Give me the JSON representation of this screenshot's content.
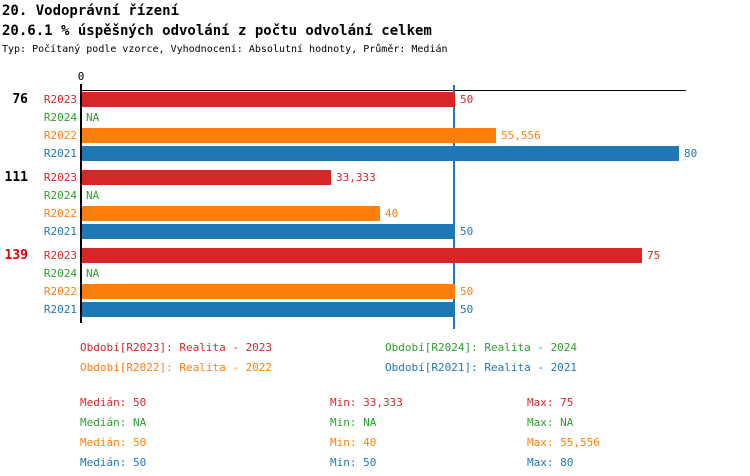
{
  "page": {
    "title": "20. Vodoprávní řízení",
    "subtitle": "20.6.1 % úspěšných odvolání z počtu odvolání celkem",
    "meta": "Typ: Počítaný podle vzorce, Vyhodnocení: Absolutní hodnoty, Průměr: Medián"
  },
  "colors": {
    "R2023": "#d62728",
    "R2024": "#2ca02c",
    "R2022": "#ff7f0e",
    "R2021": "#1f77b4",
    "axis": "#000000",
    "median_line": "#1f77b4",
    "group_label": "#000000",
    "highlighted_group_label": "#e00000"
  },
  "chart_data": {
    "type": "bar",
    "orientation": "horizontal",
    "title": "20.6.1 % úspěšných odvolání z počtu odvolání celkem",
    "axis_origin_label": "0",
    "value_axis_min": 0,
    "value_axis_max": 81,
    "median_reference_line": 50,
    "grid": false,
    "series_order": [
      "R2023",
      "R2024",
      "R2022",
      "R2021"
    ],
    "groups": [
      {
        "label": "76",
        "highlighted": false,
        "bars": [
          {
            "series": "R2023",
            "value": 50,
            "display": "50"
          },
          {
            "series": "R2024",
            "value": null,
            "display": "NA"
          },
          {
            "series": "R2022",
            "value": 55.556,
            "display": "55,556"
          },
          {
            "series": "R2021",
            "value": 80,
            "display": "80"
          }
        ]
      },
      {
        "label": "111",
        "highlighted": false,
        "bars": [
          {
            "series": "R2023",
            "value": 33.333,
            "display": "33,333"
          },
          {
            "series": "R2024",
            "value": null,
            "display": "NA"
          },
          {
            "series": "R2022",
            "value": 40,
            "display": "40"
          },
          {
            "series": "R2021",
            "value": 50,
            "display": "50"
          }
        ]
      },
      {
        "label": "139",
        "highlighted": true,
        "bars": [
          {
            "series": "R2023",
            "value": 75,
            "display": "75"
          },
          {
            "series": "R2024",
            "value": null,
            "display": "NA"
          },
          {
            "series": "R2022",
            "value": 50,
            "display": "50"
          },
          {
            "series": "R2021",
            "value": 50,
            "display": "50"
          }
        ]
      }
    ]
  },
  "legend": {
    "items": [
      {
        "series": "R2023",
        "label": "Období[R2023]: Realita - 2023"
      },
      {
        "series": "R2024",
        "label": "Období[R2024]: Realita - 2024"
      },
      {
        "series": "R2022",
        "label": "Období[R2022]: Realita - 2022"
      },
      {
        "series": "R2021",
        "label": "Období[R2021]: Realita - 2021"
      }
    ]
  },
  "stats": {
    "labels": {
      "median": "Medián",
      "min": "Min",
      "max": "Max"
    },
    "rows": [
      {
        "series": "R2023",
        "median": "50",
        "min": "33,333",
        "max": "75"
      },
      {
        "series": "R2024",
        "median": "NA",
        "min": "NA",
        "max": "NA"
      },
      {
        "series": "R2022",
        "median": "50",
        "min": "40",
        "max": "55,556"
      },
      {
        "series": "R2021",
        "median": "50",
        "min": "50",
        "max": "80"
      }
    ]
  }
}
